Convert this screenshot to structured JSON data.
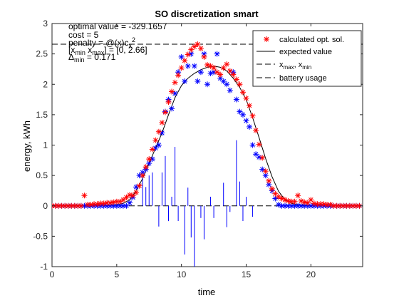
{
  "chart_data": {
    "type": "line",
    "title": "SO discretization smart",
    "xlabel": "time",
    "ylabel": "energy, kWh",
    "xlim": [
      0,
      24
    ],
    "ylim": [
      -1,
      3
    ],
    "xticks": [
      0,
      5,
      10,
      15,
      20
    ],
    "yticks": [
      -1,
      -0.5,
      0,
      0.5,
      1,
      1.5,
      2,
      2.5,
      3
    ],
    "xtick_labels": [
      "0",
      "5",
      "10",
      "15",
      "20"
    ],
    "ytick_labels": [
      "-1",
      "-0.5",
      "0",
      "0.5",
      "1",
      "1.5",
      "2",
      "2.5",
      "3"
    ],
    "grid": false,
    "legend_position": "top-right",
    "annotations": [
      {
        "parts": [
          {
            "t": "optimal value = -329.1657",
            "s": ""
          }
        ]
      },
      {
        "parts": [
          {
            "t": "cost = 5",
            "s": ""
          }
        ]
      },
      {
        "parts": [
          {
            "t": "penalty = @(x)c",
            "s": ""
          },
          {
            "t": "x",
            "s": "sub"
          },
          {
            "t": "2",
            "s": "sup"
          }
        ]
      },
      {
        "parts": [
          {
            "t": "[x",
            "s": ""
          },
          {
            "t": "min",
            "s": "sub"
          },
          {
            "t": " x",
            "s": ""
          },
          {
            "t": "max",
            "s": "sub"
          },
          {
            "t": "] = [0, 2.66]",
            "s": ""
          }
        ]
      },
      {
        "parts": [
          {
            "t": "Δ",
            "s": ""
          },
          {
            "t": "min",
            "s": "sub"
          },
          {
            "t": " = 0.171",
            "s": ""
          }
        ]
      }
    ],
    "series": [
      {
        "name": "calculated opt. sol.",
        "style": "markers",
        "marker": "asterisk",
        "color": "#ff0000",
        "x": [
          0.0,
          0.25,
          0.5,
          0.75,
          1.0,
          1.25,
          1.5,
          1.75,
          2.0,
          2.25,
          2.5,
          2.75,
          3.0,
          3.25,
          3.5,
          3.75,
          4.0,
          4.25,
          4.5,
          4.75,
          5.0,
          5.25,
          5.5,
          5.75,
          6.0,
          6.25,
          6.5,
          6.75,
          7.0,
          7.25,
          7.5,
          7.75,
          8.0,
          8.25,
          8.5,
          8.75,
          9.0,
          9.25,
          9.5,
          9.75,
          10.0,
          10.25,
          10.5,
          10.75,
          11.0,
          11.25,
          11.5,
          11.75,
          12.0,
          12.25,
          12.5,
          12.75,
          13.0,
          13.25,
          13.5,
          13.75,
          14.0,
          14.25,
          14.5,
          14.75,
          15.0,
          15.25,
          15.5,
          15.75,
          16.0,
          16.25,
          16.5,
          16.75,
          17.0,
          17.25,
          17.5,
          17.75,
          18.0,
          18.25,
          18.5,
          18.75,
          19.0,
          19.25,
          19.5,
          19.75,
          20.0,
          20.25,
          20.5,
          20.75,
          21.0,
          21.25,
          21.5,
          21.75,
          22.0,
          22.25,
          22.5,
          22.75,
          23.0,
          23.25,
          23.5,
          23.75
        ],
        "y": [
          0.0,
          0.0,
          0.0,
          0.0,
          0.0,
          0.0,
          0.0,
          0.0,
          0.0,
          0.0,
          0.17,
          0.02,
          0.02,
          0.03,
          0.03,
          0.04,
          0.04,
          0.05,
          0.05,
          0.06,
          0.07,
          0.07,
          0.1,
          0.14,
          0.18,
          0.17,
          0.22,
          0.33,
          0.5,
          0.64,
          0.77,
          0.93,
          1.08,
          1.22,
          1.37,
          1.54,
          1.71,
          1.88,
          2.03,
          2.15,
          2.27,
          2.39,
          2.49,
          2.57,
          2.62,
          2.66,
          2.59,
          2.45,
          2.32,
          2.3,
          2.27,
          2.2,
          2.16,
          2.27,
          2.33,
          2.22,
          2.16,
          2.08,
          2.0,
          1.87,
          1.77,
          1.65,
          1.48,
          1.24,
          1.01,
          0.79,
          0.57,
          0.41,
          0.28,
          0.2,
          0.15,
          0.12,
          0.1,
          0.08,
          0.07,
          0.07,
          0.17,
          0.08,
          0.06,
          0.05,
          0.1,
          0.04,
          0.03,
          0.03,
          0.03,
          0.02,
          0.02,
          0.0,
          0.0,
          0.0,
          0.0,
          0.0,
          0.0,
          0.0,
          0.0,
          0.0
        ]
      },
      {
        "name": "expected value",
        "style": "line",
        "color": "#000000",
        "x": [
          0,
          2,
          4,
          5,
          5.5,
          6.0,
          6.5,
          7.0,
          7.5,
          8.0,
          8.5,
          9.0,
          9.5,
          10.0,
          10.5,
          11.0,
          11.5,
          12.0,
          12.5,
          13.0,
          13.5,
          14.0,
          14.5,
          15.0,
          15.5,
          16.0,
          16.5,
          17.0,
          17.5,
          18.0,
          18.5,
          19.0,
          20.0,
          22.0,
          24.0
        ],
        "y": [
          0.0,
          0.0,
          0.01,
          0.02,
          0.04,
          0.1,
          0.25,
          0.45,
          0.7,
          0.95,
          1.2,
          1.5,
          1.78,
          1.98,
          2.1,
          2.18,
          2.24,
          2.28,
          2.3,
          2.28,
          2.22,
          2.1,
          1.95,
          1.75,
          1.45,
          1.12,
          0.78,
          0.48,
          0.24,
          0.1,
          0.04,
          0.02,
          0.0,
          0.0,
          0.0
        ]
      },
      {
        "name": "x_max, x_min",
        "style": "dashed",
        "color": "#000000",
        "x": [
          0,
          24
        ],
        "y": [
          2.66,
          2.66
        ]
      },
      {
        "name": "battery usage",
        "style": "dashed",
        "color": "#000000",
        "x": [
          0,
          24
        ],
        "y": [
          0.0,
          0.0
        ]
      },
      {
        "name": "",
        "style": "markers",
        "marker": "asterisk",
        "color": "#0000ff",
        "x": [
          0.0,
          0.25,
          0.5,
          0.75,
          1.0,
          1.25,
          1.5,
          1.75,
          2.0,
          2.25,
          2.5,
          2.75,
          3.0,
          3.25,
          3.5,
          3.75,
          4.0,
          4.25,
          4.5,
          4.75,
          5.0,
          5.25,
          5.5,
          5.75,
          6.0,
          6.25,
          6.5,
          6.75,
          7.0,
          7.25,
          7.5,
          7.75,
          8.0,
          8.25,
          8.5,
          8.75,
          9.0,
          9.25,
          9.5,
          9.75,
          10.0,
          10.25,
          10.5,
          10.75,
          11.0,
          11.25,
          11.5,
          11.75,
          12.0,
          12.25,
          12.5,
          12.75,
          13.0,
          13.25,
          13.5,
          13.75,
          14.0,
          14.25,
          14.5,
          14.75,
          15.0,
          15.25,
          15.5,
          15.75,
          16.0,
          16.25,
          16.5,
          16.75,
          17.0,
          17.25,
          17.5,
          17.75,
          18.0,
          18.25,
          18.5,
          18.75,
          19.0,
          19.25,
          19.5,
          19.75,
          20.0,
          20.25,
          20.5,
          20.75,
          21.0,
          21.25,
          21.5,
          21.75,
          22.0,
          22.25,
          22.5,
          22.75,
          23.0,
          23.25,
          23.5,
          23.75
        ],
        "y": [
          0.0,
          0.0,
          0.0,
          0.0,
          0.0,
          0.0,
          0.0,
          0.0,
          0.0,
          0.0,
          0.0,
          0.0,
          0.0,
          0.0,
          0.0,
          0.0,
          0.0,
          0.0,
          0.0,
          0.0,
          0.0,
          0.0,
          0.0,
          0.0,
          0.05,
          0.14,
          0.31,
          0.5,
          0.55,
          0.6,
          0.7,
          0.77,
          0.95,
          1.0,
          1.2,
          1.55,
          1.75,
          1.6,
          1.85,
          2.2,
          2.45,
          2.05,
          2.3,
          2.5,
          2.3,
          2.05,
          2.2,
          2.5,
          2.0,
          2.18,
          2.2,
          2.5,
          2.1,
          2.05,
          2.0,
          1.9,
          2.2,
          1.75,
          1.55,
          1.5,
          1.4,
          1.3,
          1.0,
          0.85,
          0.8,
          0.6,
          0.5,
          0.35,
          0.25,
          0.12,
          0.02,
          0.0,
          0.0,
          0.0,
          0.0,
          0.0,
          0.0,
          0.0,
          0.0,
          0.0,
          0.0,
          0.0,
          0.0,
          0.0,
          0.0,
          0.0,
          0.0,
          0.0,
          0.0,
          0.0,
          0.0,
          0.0,
          0.0,
          0.0,
          0.0,
          0.0
        ]
      },
      {
        "name": "",
        "style": "stems",
        "color": "#0000ff",
        "x": [
          7.0,
          7.25,
          7.5,
          7.75,
          8.25,
          8.5,
          8.75,
          9.0,
          9.25,
          9.5,
          9.75,
          10.25,
          10.5,
          10.75,
          11.0,
          11.5,
          11.75,
          12.25,
          12.5,
          13.25,
          13.5,
          13.75,
          14.25,
          14.5,
          14.75,
          15.0,
          15.5
        ],
        "y": [
          0.55,
          0.31,
          0.5,
          0.55,
          -0.34,
          0.55,
          0.82,
          -0.25,
          0.15,
          0.97,
          -0.25,
          -0.8,
          0.3,
          -0.52,
          -1.0,
          -0.2,
          -0.55,
          0.15,
          -0.2,
          0.38,
          -0.35,
          -0.1,
          1.08,
          0.4,
          -0.25,
          0.15,
          -0.18
        ]
      }
    ]
  }
}
